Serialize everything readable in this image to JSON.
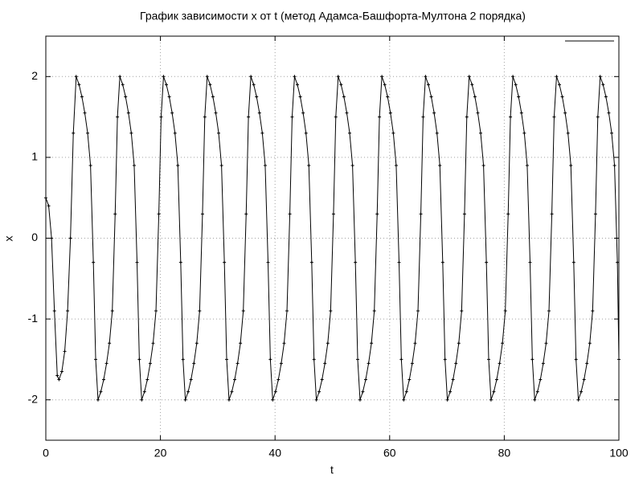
{
  "chart_data": {
    "type": "line",
    "title": "График зависимости x от t (метод Адамса-Башфорта-Мултона 2 порядка)",
    "x_label": "t",
    "y_label": "x",
    "color": "#000000",
    "grid": true,
    "markers": true,
    "xlim": [
      0,
      100
    ],
    "xticks": [
      0,
      20,
      40,
      60,
      80,
      100
    ],
    "ylim": [
      -2.5,
      2.5
    ],
    "yticks": [
      -2,
      -1,
      0,
      1,
      2
    ],
    "x": [
      0,
      0.5,
      1,
      1.5,
      2,
      2.3,
      2.8,
      3.3,
      3.8,
      4.3,
      4.8,
      5.3,
      5.8,
      6.3,
      6.8,
      7.3,
      7.8,
      8.3,
      8.7,
      9.11,
      9.6,
      10.1,
      10.6,
      11.1,
      11.6,
      12.1,
      12.5,
      12.92,
      13.42,
      13.92,
      14.42,
      14.92,
      15.42,
      15.92,
      16.32,
      16.73,
      17.22,
      17.72,
      18.22,
      18.72,
      19.22,
      19.72,
      20.12,
      20.54,
      21.04,
      21.54,
      22.04,
      22.54,
      23.04,
      23.54,
      23.94,
      24.35,
      24.84,
      25.34,
      25.84,
      26.34,
      26.84,
      27.34,
      27.74,
      28.16,
      28.66,
      29.16,
      29.66,
      30.16,
      30.66,
      31.16,
      31.56,
      31.97,
      32.46,
      32.96,
      33.46,
      33.96,
      34.46,
      34.96,
      35.36,
      35.78,
      36.28,
      36.78,
      37.28,
      37.78,
      38.28,
      38.78,
      39.18,
      39.59,
      40.08,
      40.58,
      41.08,
      41.58,
      42.08,
      42.58,
      42.98,
      43.4,
      43.9,
      44.4,
      44.9,
      45.4,
      45.9,
      46.4,
      46.8,
      47.21,
      47.7,
      48.2,
      48.7,
      49.2,
      49.7,
      50.2,
      50.6,
      51.02,
      51.52,
      52.02,
      52.52,
      53.02,
      53.52,
      54.02,
      54.42,
      54.83,
      55.32,
      55.82,
      56.32,
      56.82,
      57.32,
      57.82,
      58.22,
      58.64,
      59.14,
      59.64,
      60.14,
      60.64,
      61.14,
      61.64,
      62.04,
      62.45,
      62.94,
      63.44,
      63.94,
      64.44,
      64.94,
      65.44,
      65.84,
      66.26,
      66.76,
      67.26,
      67.76,
      68.26,
      68.76,
      69.26,
      69.66,
      70.07,
      70.56,
      71.06,
      71.56,
      72.06,
      72.56,
      73.06,
      73.46,
      73.88,
      74.38,
      74.88,
      75.38,
      75.88,
      76.38,
      76.88,
      77.28,
      77.69,
      78.18,
      78.68,
      79.18,
      79.68,
      80.18,
      80.68,
      81.08,
      81.5,
      82,
      82.5,
      83,
      83.5,
      84,
      84.5,
      84.9,
      85.31,
      85.8,
      86.3,
      86.8,
      87.3,
      87.8,
      88.3,
      88.7,
      89.12,
      89.62,
      90.12,
      90.62,
      91.12,
      91.62,
      92.12,
      92.52,
      92.93,
      93.42,
      93.92,
      94.42,
      94.92,
      95.42,
      95.92,
      96.32,
      96.74,
      97.24,
      97.74,
      98.24,
      98.74,
      99.24,
      99.74,
      100
    ],
    "values": [
      0.5,
      0.4,
      0.0,
      -0.9,
      -1.7,
      -1.75,
      -1.65,
      -1.4,
      -0.9,
      0.0,
      1.3,
      2.0,
      1.9,
      1.75,
      1.55,
      1.3,
      0.9,
      -0.3,
      -1.5,
      -2.0,
      -1.9,
      -1.75,
      -1.55,
      -1.3,
      -0.9,
      0.3,
      1.5,
      2.0,
      1.9,
      1.75,
      1.55,
      1.3,
      0.9,
      -0.3,
      -1.5,
      -2.0,
      -1.9,
      -1.75,
      -1.55,
      -1.3,
      -0.9,
      0.3,
      1.5,
      2.0,
      1.9,
      1.75,
      1.55,
      1.3,
      0.9,
      -0.3,
      -1.5,
      -2.0,
      -1.9,
      -1.75,
      -1.55,
      -1.3,
      -0.9,
      0.3,
      1.5,
      2.0,
      1.9,
      1.75,
      1.55,
      1.3,
      0.9,
      -0.3,
      -1.5,
      -2.0,
      -1.9,
      -1.75,
      -1.55,
      -1.3,
      -0.9,
      0.3,
      1.5,
      2.0,
      1.9,
      1.75,
      1.55,
      1.3,
      0.9,
      -0.3,
      -1.5,
      -2.0,
      -1.9,
      -1.75,
      -1.55,
      -1.3,
      -0.9,
      0.3,
      1.5,
      2.0,
      1.9,
      1.75,
      1.55,
      1.3,
      0.9,
      -0.3,
      -1.5,
      -2.0,
      -1.9,
      -1.75,
      -1.55,
      -1.3,
      -0.9,
      0.3,
      1.5,
      2.0,
      1.9,
      1.75,
      1.55,
      1.3,
      0.9,
      -0.3,
      -1.5,
      -2.0,
      -1.9,
      -1.75,
      -1.55,
      -1.3,
      -0.9,
      0.3,
      1.5,
      2.0,
      1.9,
      1.75,
      1.55,
      1.3,
      0.9,
      -0.3,
      -1.5,
      -2.0,
      -1.9,
      -1.75,
      -1.55,
      -1.3,
      -0.9,
      0.3,
      1.5,
      2.0,
      1.9,
      1.75,
      1.55,
      1.3,
      0.9,
      -0.3,
      -1.5,
      -2.0,
      -1.9,
      -1.75,
      -1.55,
      -1.3,
      -0.9,
      0.3,
      1.5,
      2.0,
      1.9,
      1.75,
      1.55,
      1.3,
      0.9,
      -0.3,
      -1.5,
      -2.0,
      -1.9,
      -1.75,
      -1.55,
      -1.3,
      -0.9,
      0.3,
      1.5,
      2.0,
      1.9,
      1.75,
      1.55,
      1.3,
      0.9,
      -0.3,
      -1.5,
      -2.0,
      -1.9,
      -1.75,
      -1.55,
      -1.3,
      -0.9,
      0.3,
      1.5,
      2.0,
      1.9,
      1.75,
      1.55,
      1.3,
      0.9,
      -0.3,
      -1.5,
      -2.0,
      -1.9,
      -1.75,
      -1.55,
      -1.3,
      -0.9,
      0.3,
      1.5,
      2.0,
      1.9,
      1.75,
      1.55,
      1.3,
      0.9,
      -0.3,
      -1.5
    ]
  }
}
